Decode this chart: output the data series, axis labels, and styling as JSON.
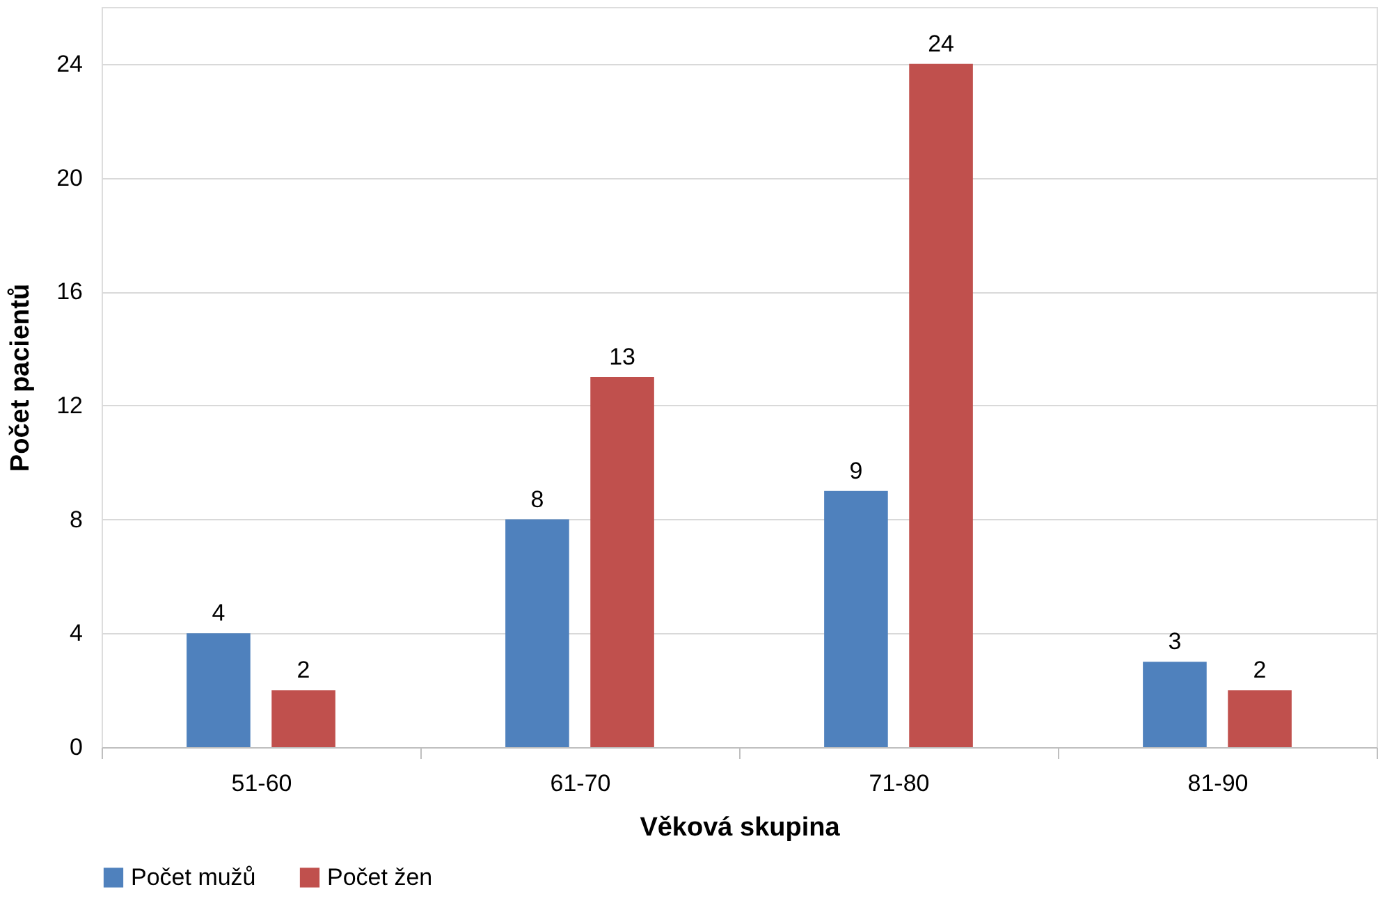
{
  "chart_data": {
    "type": "bar",
    "xlabel": "Věková skupina",
    "ylabel": "Počet pacientů",
    "categories": [
      "51-60",
      "61-70",
      "71-80",
      "81-90"
    ],
    "series": [
      {
        "name": "Počet mužů",
        "color": "#4f81bd",
        "values": [
          4,
          8,
          9,
          3
        ]
      },
      {
        "name": "Počet žen",
        "color": "#c0504d",
        "values": [
          2,
          13,
          24,
          2
        ]
      }
    ],
    "ylim": [
      0,
      26
    ],
    "yticks": [
      0,
      4,
      8,
      12,
      16,
      20,
      24
    ],
    "grid": "y",
    "legend": "bottom",
    "data_labels": true
  }
}
